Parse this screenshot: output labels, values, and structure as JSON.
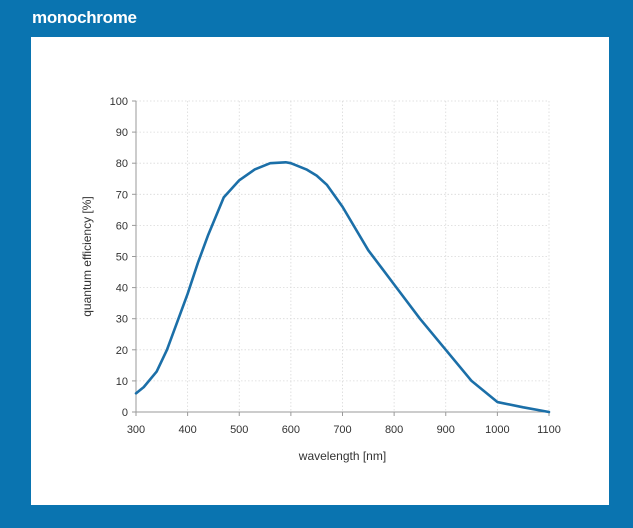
{
  "panel": {
    "title": "monochrome"
  },
  "colors": {
    "frame": "#0a74b0",
    "line": "#1b6fa8",
    "grid": "#d9d9d9",
    "axis": "#9a9a9a"
  },
  "chart_data": {
    "type": "line",
    "title": "",
    "xlabel": "wavelength [nm]",
    "ylabel": "quantum efficiency [%]",
    "xlim": [
      300,
      1100
    ],
    "ylim": [
      0,
      100
    ],
    "xticks": [
      300,
      400,
      500,
      600,
      700,
      800,
      900,
      1000,
      1100
    ],
    "yticks": [
      0,
      10,
      20,
      30,
      40,
      50,
      60,
      70,
      80,
      90,
      100
    ],
    "grid": true,
    "series": [
      {
        "x": [
          300,
          315,
          340,
          360,
          380,
          400,
          420,
          440,
          470,
          500,
          530,
          560,
          590,
          600,
          630,
          650,
          670,
          700,
          750,
          800,
          850,
          900,
          950,
          1000,
          1050,
          1100
        ],
        "y": [
          6,
          8,
          13,
          20,
          29,
          38,
          48,
          57,
          69,
          74.5,
          78,
          80,
          80.3,
          80,
          78,
          76,
          73,
          66,
          52,
          41,
          30,
          20,
          10,
          3.2,
          1.5,
          0
        ]
      }
    ]
  }
}
